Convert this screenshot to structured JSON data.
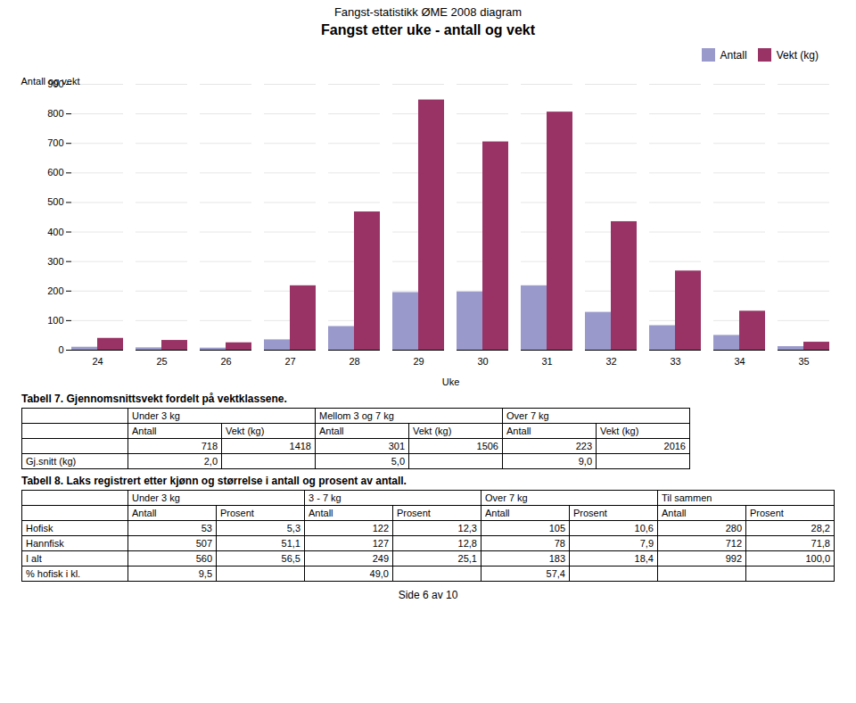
{
  "page_title": "Fangst-statistikk ØME 2008 diagram",
  "chart_data": {
    "type": "bar",
    "title": "Fangst etter uke - antall og vekt",
    "xlabel": "Uke",
    "ylabel": "Antall og vekt",
    "categories": [
      24,
      25,
      26,
      27,
      28,
      29,
      30,
      31,
      32,
      33,
      34,
      35
    ],
    "series": [
      {
        "name": "Antall",
        "color": "#9999cc",
        "values": [
          10,
          8,
          7,
          35,
          80,
          195,
          197,
          218,
          128,
          83,
          50,
          12
        ]
      },
      {
        "name": "Vekt (kg)",
        "color": "#993366",
        "values": [
          40,
          33,
          25,
          218,
          468,
          847,
          705,
          806,
          435,
          268,
          132,
          27
        ]
      }
    ],
    "ylim": [
      0,
      900
    ],
    "yticks": [
      0,
      100,
      200,
      300,
      400,
      500,
      600,
      700,
      800,
      900
    ],
    "grid": true,
    "legend": "upper right"
  },
  "tables": [
    {
      "title": "Tabell 7. Gjennomsnittsvekt fordelt på vektklassene.",
      "col_headers": [
        "Under 3 kg",
        "Mellom 3 og 7 kg",
        "Over 7 kg"
      ],
      "sub_headers": [
        "Antall",
        "Vekt (kg)",
        "Antall",
        "Vekt (kg)",
        "Antall",
        "Vekt (kg)"
      ],
      "rows": [
        [
          null,
          "718",
          "1418",
          "301",
          "1506",
          "223",
          "2016"
        ],
        [
          "Gj.snitt (kg)",
          "2,0",
          null,
          "5,0",
          null,
          "9,0",
          null
        ]
      ]
    },
    {
      "title": "Tabell 8. Laks registrert etter kjønn og størrelse i antall og prosent av antall.",
      "col_headers": [
        "Under 3 kg",
        "3 - 7 kg",
        "Over 7 kg",
        "Til sammen"
      ],
      "sub_headers": [
        "Antall",
        "Prosent",
        "Antall",
        "Prosent",
        "Antall",
        "Prosent",
        "Antall",
        "Prosent"
      ],
      "rows": [
        [
          "Hofisk",
          "53",
          "5,3",
          "122",
          "12,3",
          "105",
          "10,6",
          "280",
          "28,2"
        ],
        [
          "Hannfisk",
          "507",
          "51,1",
          "127",
          "12,8",
          "78",
          "7,9",
          "712",
          "71,8"
        ],
        [
          "I alt",
          "560",
          "56,5",
          "249",
          "25,1",
          "183",
          "18,4",
          "992",
          "100,0"
        ],
        [
          "% hofisk i kl.",
          "9,5",
          null,
          "49,0",
          null,
          "57,4",
          null,
          null,
          null
        ]
      ]
    }
  ],
  "page_footer": "Side 6 av 10"
}
